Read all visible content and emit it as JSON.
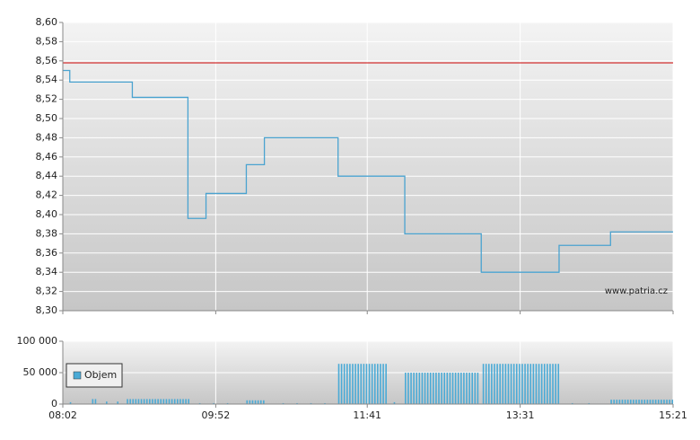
{
  "chart_data": [
    {
      "type": "line",
      "x": [
        482,
        487,
        532,
        572,
        585,
        614,
        627,
        680,
        728,
        783,
        839,
        876,
        921
      ],
      "values": [
        8.55,
        8.538,
        8.522,
        8.396,
        8.422,
        8.452,
        8.48,
        8.44,
        8.38,
        8.34,
        8.368,
        8.382,
        8.382
      ],
      "step": true,
      "color": "#4aa3d0",
      "reference_line": {
        "value": 8.558,
        "color": "#cc0000"
      },
      "annotation": "www.patria.cz",
      "xlim": [
        482,
        921
      ],
      "xticks": [
        {
          "value": 482,
          "label": "08:02"
        },
        {
          "value": 592,
          "label": "09:52"
        },
        {
          "value": 701,
          "label": "11:41"
        },
        {
          "value": 811,
          "label": "13:31"
        },
        {
          "value": 921,
          "label": "15:21"
        }
      ],
      "ylim": [
        8.3,
        8.6
      ],
      "yticks": [
        {
          "value": 8.3,
          "label": "8,30"
        },
        {
          "value": 8.32,
          "label": "8,32"
        },
        {
          "value": 8.34,
          "label": "8,34"
        },
        {
          "value": 8.36,
          "label": "8,36"
        },
        {
          "value": 8.38,
          "label": "8,38"
        },
        {
          "value": 8.4,
          "label": "8,40"
        },
        {
          "value": 8.42,
          "label": "8,42"
        },
        {
          "value": 8.44,
          "label": "8,44"
        },
        {
          "value": 8.46,
          "label": "8,46"
        },
        {
          "value": 8.48,
          "label": "8,48"
        },
        {
          "value": 8.5,
          "label": "8,50"
        },
        {
          "value": 8.52,
          "label": "8,52"
        },
        {
          "value": 8.54,
          "label": "8,54"
        },
        {
          "value": 8.56,
          "label": "8,56"
        },
        {
          "value": 8.58,
          "label": "8,58"
        },
        {
          "value": 8.6,
          "label": "8,60"
        }
      ],
      "grid": true
    },
    {
      "type": "bar",
      "series": [
        {
          "name": "Objem",
          "color": "#4aaad6",
          "x": [
            487,
            503,
            505,
            513,
            521,
            528,
            530,
            532,
            534,
            536,
            538,
            540,
            542,
            544,
            546,
            548,
            550,
            552,
            554,
            556,
            558,
            560,
            562,
            564,
            566,
            568,
            570,
            572,
            580,
            590,
            600,
            614,
            616,
            618,
            620,
            622,
            624,
            626,
            640,
            650,
            660,
            670,
            680,
            682,
            684,
            686,
            688,
            690,
            692,
            694,
            696,
            698,
            700,
            702,
            704,
            706,
            708,
            710,
            712,
            714,
            720,
            728,
            730,
            732,
            734,
            736,
            738,
            740,
            742,
            744,
            746,
            748,
            750,
            752,
            754,
            756,
            758,
            760,
            762,
            764,
            766,
            768,
            770,
            772,
            774,
            776,
            778,
            780,
            784,
            786,
            788,
            790,
            792,
            794,
            796,
            798,
            800,
            802,
            804,
            806,
            808,
            810,
            812,
            814,
            816,
            818,
            820,
            822,
            824,
            826,
            828,
            830,
            832,
            834,
            836,
            838,
            848,
            860,
            876,
            878,
            880,
            882,
            884,
            886,
            888,
            890,
            892,
            894,
            896,
            898,
            900,
            902,
            904,
            906,
            908,
            910,
            912,
            914,
            916,
            918,
            920
          ],
          "values": [
            3000,
            8000,
            8000,
            4000,
            4000,
            8000,
            8000,
            8000,
            8000,
            8000,
            8000,
            8000,
            8000,
            8000,
            8000,
            8000,
            8000,
            8000,
            8000,
            8000,
            8000,
            8000,
            8000,
            8000,
            8000,
            8000,
            8000,
            8000,
            1500,
            1500,
            1500,
            6000,
            6000,
            6000,
            6000,
            6000,
            6000,
            6000,
            1500,
            1500,
            1500,
            1500,
            64000,
            64000,
            64000,
            64000,
            64000,
            64000,
            64000,
            64000,
            64000,
            64000,
            64000,
            64000,
            64000,
            64000,
            64000,
            64000,
            64000,
            64000,
            3000,
            50000,
            50000,
            50000,
            50000,
            50000,
            50000,
            50000,
            50000,
            50000,
            50000,
            50000,
            50000,
            50000,
            50000,
            50000,
            50000,
            50000,
            50000,
            50000,
            50000,
            50000,
            50000,
            50000,
            50000,
            50000,
            50000,
            50000,
            64000,
            64000,
            64000,
            64000,
            64000,
            64000,
            64000,
            64000,
            64000,
            64000,
            64000,
            64000,
            64000,
            64000,
            64000,
            64000,
            64000,
            64000,
            64000,
            64000,
            64000,
            64000,
            64000,
            64000,
            64000,
            64000,
            64000,
            64000,
            1500,
            1500,
            7000,
            7000,
            7000,
            7000,
            7000,
            7000,
            7000,
            7000,
            7000,
            7000,
            7000,
            7000,
            7000,
            7000,
            7000,
            7000,
            7000,
            7000,
            7000,
            7000,
            7000,
            7000,
            7000
          ]
        }
      ],
      "legend": "top-left",
      "xlim": [
        482,
        921
      ],
      "xticks": [
        {
          "value": 482,
          "label": "08:02"
        },
        {
          "value": 592,
          "label": "09:52"
        },
        {
          "value": 701,
          "label": "11:41"
        },
        {
          "value": 811,
          "label": "13:31"
        },
        {
          "value": 921,
          "label": "15:21"
        }
      ],
      "ylim": [
        0,
        100000
      ],
      "yticks": [
        0,
        {
          "value": 50000,
          "label": "50 000"
        },
        {
          "value": 100000,
          "label": "100 000"
        }
      ],
      "grid": true
    }
  ]
}
